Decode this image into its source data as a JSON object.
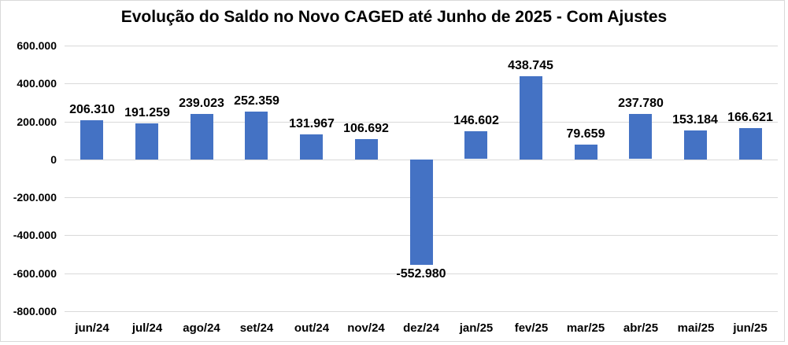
{
  "chart_data": {
    "type": "bar",
    "title": "Evolução do Saldo no Novo CAGED até Junho de 2025 - Com Ajustes",
    "categories": [
      "jun/24",
      "jul/24",
      "ago/24",
      "set/24",
      "out/24",
      "nov/24",
      "dez/24",
      "jan/25",
      "fev/25",
      "mar/25",
      "abr/25",
      "mai/25",
      "jun/25"
    ],
    "values": [
      206310,
      191259,
      239023,
      252359,
      131967,
      106692,
      -552980,
      146602,
      438745,
      79659,
      237780,
      153184,
      166621
    ],
    "data_labels": [
      "206.310",
      "191.259",
      "239.023",
      "252.359",
      "131.967",
      "106.692",
      "-552.980",
      "146.602",
      "438.745",
      "79.659",
      "237.780",
      "153.184",
      "166.621"
    ],
    "y_tick_values": [
      600000,
      400000,
      200000,
      0,
      -200000,
      -400000,
      -600000,
      -800000
    ],
    "y_tick_labels": [
      "600.000",
      "400.000",
      "200.000",
      "0",
      "-200.000",
      "-400.000",
      "-600.000",
      "-800.000"
    ],
    "ylim": [
      -800000,
      600000
    ],
    "xlabel": "",
    "ylabel": "",
    "grid": true,
    "legend": "none",
    "colors": {
      "bar": "#4472c4",
      "gridline": "#d9d9d9",
      "text": "#000000",
      "background": "#ffffff",
      "frame_border": "#d9d9d9"
    }
  }
}
